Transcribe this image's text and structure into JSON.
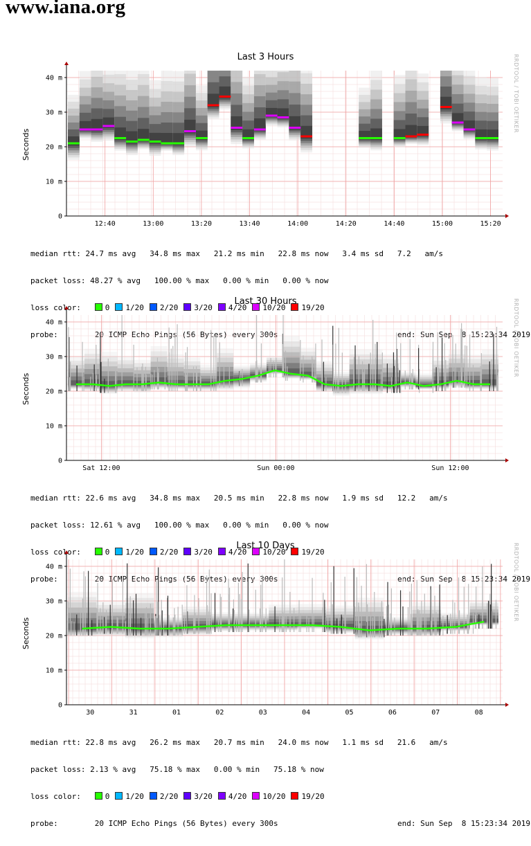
{
  "site": {
    "title": "www.iana.org"
  },
  "panels": [
    {
      "title": "Last 3 Hours",
      "ylabel": "Seconds",
      "side_label": "RRDTOOL / TOBI OETIKER",
      "median_rtt": {
        "label": "median rtt:",
        "text": "24.7 ms avg   34.8 ms max   21.2 ms min   22.8 ms now   3.4 ms sd   7.2   am/s"
      },
      "packet_loss": {
        "label": "packet loss:",
        "text": "48.27 % avg   100.00 % max   0.00 % min   0.00 % now"
      },
      "loss_color_label": "loss color:",
      "probe": {
        "label": "probe:",
        "text": "20 ICMP Echo Pings (56 Bytes) every 300s",
        "end": "end: Sun Sep  8 15:23:34 2019"
      }
    },
    {
      "title": "Last 30 Hours",
      "ylabel": "Seconds",
      "side_label": "RRDTOOL / TOBI OETIKER",
      "median_rtt": {
        "label": "median rtt:",
        "text": "22.6 ms avg   34.8 ms max   20.5 ms min   22.8 ms now   1.9 ms sd   12.2   am/s"
      },
      "packet_loss": {
        "label": "packet loss:",
        "text": "12.61 % avg   100.00 % max   0.00 % min   0.00 % now"
      },
      "loss_color_label": "loss color:",
      "probe": {
        "label": "probe:",
        "text": "20 ICMP Echo Pings (56 Bytes) every 300s",
        "end": "end: Sun Sep  8 15:23:34 2019"
      }
    },
    {
      "title": "Last 10 Days",
      "ylabel": "Seconds",
      "side_label": "RRDTOOL / TOBI OETIKER",
      "median_rtt": {
        "label": "median rtt:",
        "text": "22.8 ms avg   26.2 ms max   20.7 ms min   24.0 ms now   1.1 ms sd   21.6   am/s"
      },
      "packet_loss": {
        "label": "packet loss:",
        "text": "2.13 % avg   75.18 % max   0.00 % min   75.18 % now"
      },
      "loss_color_label": "loss color:",
      "probe": {
        "label": "probe:",
        "text": "20 ICMP Echo Pings (56 Bytes) every 300s",
        "end": "end: Sun Sep  8 15:23:34 2019"
      }
    }
  ],
  "loss_colors": [
    {
      "label": "0",
      "color": "#26ff00"
    },
    {
      "label": "1/20",
      "color": "#00b8ff"
    },
    {
      "label": "2/20",
      "color": "#0059ff"
    },
    {
      "label": "3/20",
      "color": "#5e00ff"
    },
    {
      "label": "4/20",
      "color": "#7e00ff"
    },
    {
      "label": "10/20",
      "color": "#dd00ff"
    },
    {
      "label": "19/20",
      "color": "#ff0000"
    }
  ],
  "chart_data": [
    {
      "type": "area",
      "title": "Last 3 Hours",
      "ylabel": "Seconds",
      "y_unit": "m",
      "ylim": [
        0,
        42
      ],
      "y_ticks": [
        0,
        10,
        20,
        30,
        40
      ],
      "y_tick_labels": [
        "0",
        "10 m",
        "20 m",
        "30 m",
        "40 m"
      ],
      "x_ticks": [
        "12:40",
        "13:00",
        "13:20",
        "13:40",
        "14:00",
        "14:20",
        "14:40",
        "15:00",
        "15:20"
      ],
      "grid": true,
      "series": [
        {
          "name": "median",
          "values": [
            21,
            25,
            25,
            26,
            22.5,
            21.5,
            22,
            21.5,
            21,
            21,
            24.5,
            22.5,
            32,
            34.5,
            25.5,
            22.5,
            25,
            29,
            28.5,
            25.5,
            23,
            null,
            null,
            null,
            null,
            22.5,
            22.5,
            null,
            22.5,
            23,
            23.5,
            null,
            31.5,
            27,
            25,
            22.5,
            22.5
          ]
        }
      ]
    },
    {
      "type": "area",
      "title": "Last 30 Hours",
      "ylabel": "Seconds",
      "y_unit": "m",
      "ylim": [
        0,
        42
      ],
      "y_ticks": [
        0,
        10,
        20,
        30,
        40
      ],
      "y_tick_labels": [
        "0",
        "10 m",
        "20 m",
        "30 m",
        "40 m"
      ],
      "x_ticks": [
        "Sat 12:00",
        "Sun 00:00",
        "Sun 12:00"
      ],
      "grid": true,
      "series": [
        {
          "name": "median",
          "values": [
            22,
            22,
            21.5,
            22,
            22,
            22.5,
            22,
            22,
            22,
            23,
            23.5,
            24.5,
            26,
            25,
            24.5,
            22,
            21.5,
            22,
            22,
            21.5,
            22.5,
            21.5,
            22,
            23,
            22,
            22
          ]
        }
      ]
    },
    {
      "type": "area",
      "title": "Last 10 Days",
      "ylabel": "Seconds",
      "y_unit": "m",
      "ylim": [
        0,
        42
      ],
      "y_ticks": [
        0,
        10,
        20,
        30,
        40
      ],
      "y_tick_labels": [
        "0",
        "10 m",
        "20 m",
        "30 m",
        "40 m"
      ],
      "x_ticks": [
        "30",
        "31",
        "01",
        "02",
        "03",
        "04",
        "05",
        "06",
        "07",
        "08"
      ],
      "grid": true,
      "series": [
        {
          "name": "median",
          "values": [
            22,
            22.5,
            22,
            22,
            22.5,
            23,
            23,
            23,
            23,
            22.5,
            21.5,
            22,
            22,
            22.5,
            24
          ]
        }
      ]
    }
  ]
}
